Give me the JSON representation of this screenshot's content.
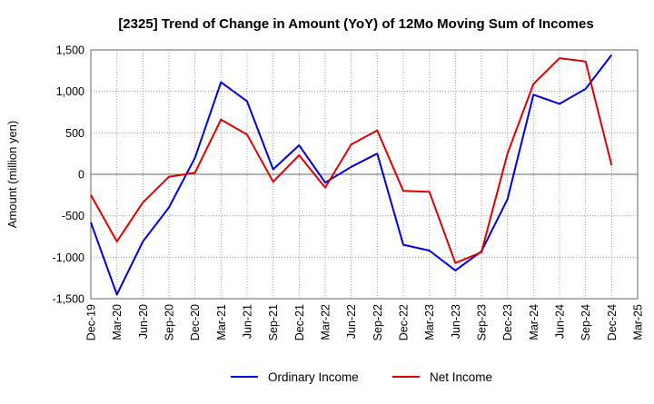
{
  "chart_data": {
    "type": "line",
    "title": "[2325]  Trend of Change in Amount (YoY) of 12Mo Moving Sum of Incomes",
    "xlabel": "",
    "ylabel": "Amount (million yen)",
    "ylim": [
      -1500,
      1500
    ],
    "yticks": [
      -1500,
      -1000,
      -500,
      0,
      500,
      1000,
      1500
    ],
    "ytick_labels": [
      "-1,500",
      "-1,000",
      "-500",
      "0",
      "500",
      "1,000",
      "1,500"
    ],
    "categories": [
      "Dec-19",
      "Mar-20",
      "Jun-20",
      "Sep-20",
      "Dec-20",
      "Mar-21",
      "Jun-21",
      "Sep-21",
      "Dec-21",
      "Mar-22",
      "Jun-22",
      "Sep-22",
      "Dec-22",
      "Mar-23",
      "Jun-23",
      "Sep-23",
      "Dec-23",
      "Mar-24",
      "Jun-24",
      "Sep-24",
      "Dec-24",
      "Mar-25"
    ],
    "grid": true,
    "legend_position": "bottom",
    "series": [
      {
        "name": "Ordinary Income",
        "color": "#0000dd",
        "values": [
          -580,
          -1450,
          -810,
          -400,
          200,
          1110,
          880,
          60,
          350,
          -100,
          90,
          250,
          -850,
          -920,
          -1160,
          -930,
          -300,
          960,
          850,
          1030,
          1440,
          null
        ]
      },
      {
        "name": "Net Income",
        "color": "#dd0000",
        "values": [
          -250,
          -810,
          -340,
          -30,
          20,
          660,
          480,
          -90,
          230,
          -160,
          360,
          530,
          -200,
          -210,
          -1070,
          -940,
          250,
          1090,
          1400,
          1360,
          110,
          null
        ]
      }
    ]
  }
}
